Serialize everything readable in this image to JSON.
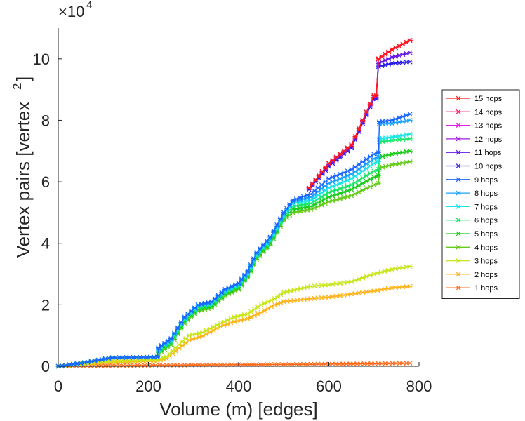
{
  "chart_data": {
    "type": "line",
    "xlabel": "Volume (m) [edges]",
    "ylabel": "Vertex pairs [vertex",
    "ylabel_superscript": "2",
    "ylabel_close": "]",
    "y_multiplier": "×10",
    "y_multiplier_exponent": "4",
    "xlim": [
      0,
      800
    ],
    "ylim": [
      0,
      110000
    ],
    "xticks": [
      0,
      200,
      400,
      600,
      800
    ],
    "yticks": [
      0,
      20000,
      40000,
      60000,
      80000,
      100000
    ],
    "ytick_labels": [
      "0",
      "2",
      "4",
      "6",
      "8",
      "10"
    ],
    "grid": false,
    "legend_position": "right",
    "series": [
      {
        "name": "15 hops",
        "color": "#ff1a1a",
        "points": [
          [
            556,
            58000
          ],
          [
            600,
            66000
          ],
          [
            650,
            72000
          ],
          [
            700,
            88000
          ],
          [
            705,
            88000
          ],
          [
            710,
            100000
          ],
          [
            740,
            103000
          ],
          [
            780,
            106000
          ]
        ]
      },
      {
        "name": "14 hops",
        "color": "#ff1a66",
        "points": [
          [
            556,
            58000
          ],
          [
            600,
            66000
          ],
          [
            650,
            72000
          ],
          [
            700,
            88000
          ],
          [
            705,
            88000
          ],
          [
            710,
            100000
          ],
          [
            740,
            103000
          ],
          [
            780,
            106000
          ]
        ]
      },
      {
        "name": "13 hops",
        "color": "#e61ae6",
        "points": [
          [
            556,
            58000
          ],
          [
            600,
            66000
          ],
          [
            650,
            72000
          ],
          [
            700,
            88000
          ],
          [
            705,
            88000
          ],
          [
            710,
            100000
          ],
          [
            740,
            103000
          ],
          [
            780,
            106000
          ]
        ]
      },
      {
        "name": "12 hops",
        "color": "#a31ae6",
        "points": [
          [
            556,
            58000
          ],
          [
            600,
            66000
          ],
          [
            650,
            72000
          ],
          [
            700,
            88000
          ],
          [
            705,
            88000
          ],
          [
            710,
            100000
          ],
          [
            740,
            103000
          ],
          [
            780,
            106000
          ]
        ]
      },
      {
        "name": "11 hops",
        "color": "#661ae6",
        "points": [
          [
            556,
            58000
          ],
          [
            600,
            65500
          ],
          [
            650,
            71500
          ],
          [
            700,
            87500
          ],
          [
            705,
            87500
          ],
          [
            710,
            98500
          ],
          [
            740,
            100500
          ],
          [
            780,
            102000
          ]
        ]
      },
      {
        "name": "10 hops",
        "color": "#2a1ae6",
        "points": [
          [
            556,
            57500
          ],
          [
            600,
            65000
          ],
          [
            650,
            71000
          ],
          [
            700,
            87000
          ],
          [
            705,
            87000
          ],
          [
            710,
            97500
          ],
          [
            740,
            98500
          ],
          [
            780,
            99000
          ]
        ]
      },
      {
        "name": "9 hops",
        "color": "#1a66ff",
        "points": [
          [
            0,
            0
          ],
          [
            50,
            1000
          ],
          [
            120,
            2800
          ],
          [
            220,
            3000
          ],
          [
            222,
            6000
          ],
          [
            250,
            9000
          ],
          [
            280,
            16000
          ],
          [
            310,
            20000
          ],
          [
            340,
            21000
          ],
          [
            370,
            25000
          ],
          [
            400,
            27000
          ],
          [
            420,
            31000
          ],
          [
            440,
            37000
          ],
          [
            470,
            42000
          ],
          [
            500,
            50000
          ],
          [
            520,
            54000
          ],
          [
            560,
            56000
          ],
          [
            600,
            61000
          ],
          [
            650,
            64000
          ],
          [
            700,
            69000
          ],
          [
            710,
            69500
          ],
          [
            712,
            79500
          ],
          [
            740,
            80000
          ],
          [
            780,
            82000
          ]
        ]
      },
      {
        "name": "8 hops",
        "color": "#1aa3ff",
        "points": [
          [
            0,
            0
          ],
          [
            50,
            1000
          ],
          [
            120,
            2800
          ],
          [
            220,
            3000
          ],
          [
            222,
            5800
          ],
          [
            250,
            8800
          ],
          [
            280,
            15800
          ],
          [
            310,
            19800
          ],
          [
            340,
            20800
          ],
          [
            370,
            24800
          ],
          [
            400,
            26800
          ],
          [
            420,
            30600
          ],
          [
            440,
            36600
          ],
          [
            470,
            41500
          ],
          [
            500,
            49500
          ],
          [
            520,
            53500
          ],
          [
            560,
            55000
          ],
          [
            600,
            59500
          ],
          [
            650,
            62500
          ],
          [
            700,
            67500
          ],
          [
            710,
            68000
          ],
          [
            712,
            79000
          ],
          [
            740,
            79000
          ],
          [
            780,
            80000
          ]
        ]
      },
      {
        "name": "7 hops",
        "color": "#1ae6e6",
        "points": [
          [
            0,
            0
          ],
          [
            50,
            1000
          ],
          [
            120,
            2800
          ],
          [
            220,
            3000
          ],
          [
            222,
            5500
          ],
          [
            250,
            8500
          ],
          [
            280,
            15500
          ],
          [
            310,
            19500
          ],
          [
            340,
            20500
          ],
          [
            370,
            24500
          ],
          [
            400,
            26500
          ],
          [
            420,
            30200
          ],
          [
            440,
            36200
          ],
          [
            470,
            41000
          ],
          [
            500,
            49000
          ],
          [
            520,
            53000
          ],
          [
            560,
            54000
          ],
          [
            600,
            58000
          ],
          [
            650,
            61000
          ],
          [
            700,
            66000
          ],
          [
            710,
            66500
          ],
          [
            712,
            74000
          ],
          [
            740,
            74500
          ],
          [
            780,
            75500
          ]
        ]
      },
      {
        "name": "6 hops",
        "color": "#1ae666",
        "points": [
          [
            0,
            0
          ],
          [
            50,
            1000
          ],
          [
            120,
            2800
          ],
          [
            220,
            3000
          ],
          [
            222,
            5000
          ],
          [
            250,
            8000
          ],
          [
            280,
            15000
          ],
          [
            310,
            19000
          ],
          [
            340,
            20000
          ],
          [
            370,
            24000
          ],
          [
            400,
            26000
          ],
          [
            420,
            29800
          ],
          [
            440,
            35800
          ],
          [
            470,
            40500
          ],
          [
            500,
            48500
          ],
          [
            520,
            52000
          ],
          [
            560,
            53000
          ],
          [
            600,
            56500
          ],
          [
            650,
            59000
          ],
          [
            700,
            63500
          ],
          [
            710,
            64000
          ],
          [
            712,
            73000
          ],
          [
            740,
            73500
          ],
          [
            780,
            74000
          ]
        ]
      },
      {
        "name": "5 hops",
        "color": "#1acc1a",
        "points": [
          [
            0,
            0
          ],
          [
            50,
            1000
          ],
          [
            120,
            2800
          ],
          [
            220,
            3000
          ],
          [
            222,
            4500
          ],
          [
            250,
            7500
          ],
          [
            280,
            14500
          ],
          [
            310,
            18500
          ],
          [
            340,
            19500
          ],
          [
            370,
            23500
          ],
          [
            400,
            25500
          ],
          [
            420,
            29400
          ],
          [
            440,
            35300
          ],
          [
            470,
            40000
          ],
          [
            500,
            48000
          ],
          [
            520,
            51000
          ],
          [
            560,
            52000
          ],
          [
            600,
            55000
          ],
          [
            650,
            57500
          ],
          [
            700,
            61500
          ],
          [
            710,
            62000
          ],
          [
            712,
            68000
          ],
          [
            740,
            69000
          ],
          [
            780,
            70000
          ]
        ]
      },
      {
        "name": "4 hops",
        "color": "#66cc1a",
        "points": [
          [
            0,
            0
          ],
          [
            50,
            1000
          ],
          [
            120,
            2800
          ],
          [
            220,
            3000
          ],
          [
            222,
            4000
          ],
          [
            250,
            7000
          ],
          [
            280,
            14000
          ],
          [
            310,
            18000
          ],
          [
            340,
            19000
          ],
          [
            370,
            23000
          ],
          [
            400,
            25000
          ],
          [
            420,
            29000
          ],
          [
            440,
            34800
          ],
          [
            470,
            39500
          ],
          [
            500,
            47500
          ],
          [
            520,
            50000
          ],
          [
            560,
            51000
          ],
          [
            600,
            53500
          ],
          [
            650,
            55500
          ],
          [
            700,
            59000
          ],
          [
            710,
            59500
          ],
          [
            712,
            64500
          ],
          [
            740,
            65500
          ],
          [
            780,
            66500
          ]
        ]
      },
      {
        "name": "3 hops",
        "color": "#c8e61a",
        "points": [
          [
            0,
            0
          ],
          [
            100,
            1500
          ],
          [
            220,
            2200
          ],
          [
            240,
            3000
          ],
          [
            260,
            6000
          ],
          [
            290,
            10000
          ],
          [
            320,
            11000
          ],
          [
            360,
            14000
          ],
          [
            390,
            16000
          ],
          [
            420,
            17000
          ],
          [
            450,
            20000
          ],
          [
            480,
            22000
          ],
          [
            500,
            24000
          ],
          [
            530,
            25000
          ],
          [
            560,
            26000
          ],
          [
            600,
            26500
          ],
          [
            650,
            27500
          ],
          [
            700,
            30000
          ],
          [
            740,
            31500
          ],
          [
            780,
            32500
          ]
        ]
      },
      {
        "name": "2 hops",
        "color": "#ffb31a",
        "points": [
          [
            0,
            0
          ],
          [
            100,
            1200
          ],
          [
            220,
            1800
          ],
          [
            240,
            2500
          ],
          [
            260,
            5000
          ],
          [
            290,
            8500
          ],
          [
            320,
            9800
          ],
          [
            360,
            13000
          ],
          [
            390,
            14500
          ],
          [
            420,
            15500
          ],
          [
            450,
            17500
          ],
          [
            480,
            20000
          ],
          [
            500,
            21000
          ],
          [
            530,
            21500
          ],
          [
            560,
            22000
          ],
          [
            600,
            22500
          ],
          [
            650,
            23500
          ],
          [
            700,
            24500
          ],
          [
            740,
            25500
          ],
          [
            780,
            26000
          ]
        ]
      },
      {
        "name": "1 hops",
        "color": "#ff6a1a",
        "points": [
          [
            0,
            0
          ],
          [
            200,
            300
          ],
          [
            400,
            500
          ],
          [
            600,
            700
          ],
          [
            780,
            1000
          ]
        ]
      }
    ]
  }
}
